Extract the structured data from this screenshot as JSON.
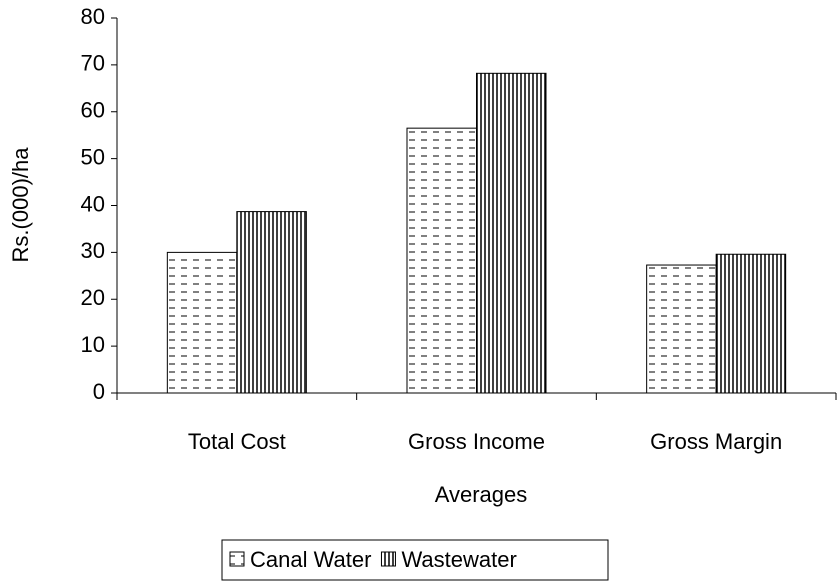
{
  "chart_data": {
    "type": "bar",
    "y_label": "Rs.(000)/ha",
    "x_label": "Averages",
    "categories": [
      "Total Cost",
      "Gross Income",
      "Gross Margin"
    ],
    "series": [
      {
        "name": "Canal Water",
        "pattern": "dashes",
        "values": [
          30,
          56.5,
          27.3
        ]
      },
      {
        "name": "Wastewater",
        "pattern": "vertical",
        "values": [
          38.7,
          68.2,
          29.6
        ]
      }
    ],
    "ylim": [
      0,
      80
    ],
    "yticks": [
      0,
      10,
      20,
      30,
      40,
      50,
      60,
      70,
      80
    ],
    "grid": false
  }
}
